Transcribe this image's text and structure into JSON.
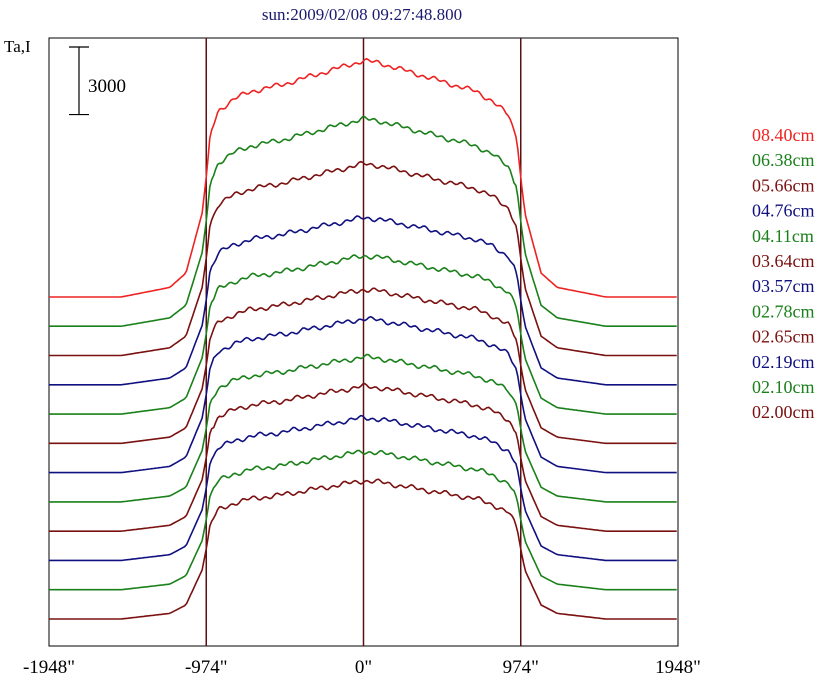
{
  "chart_data": {
    "type": "line",
    "title": "sun:2009/02/08 09:27:48.800",
    "ylabel": "Ta,I",
    "xlabel": "",
    "x_ticks": [
      "-1948\"",
      "-974\"",
      "0\"",
      "974\"",
      "1948\""
    ],
    "x_tick_values": [
      -1948,
      -974,
      0,
      974,
      1948
    ],
    "xlim": [
      -1948,
      1948
    ],
    "vertical_lines_at": [
      -974,
      0,
      974
    ],
    "scale_bar": {
      "label": "3000",
      "value": 3000
    },
    "grid": false,
    "legend_position": "right",
    "profile_shape": {
      "x": [
        -1948,
        -1500,
        -1200,
        -1100,
        -1000,
        -974,
        -950,
        -900,
        -800,
        -700,
        -500,
        -300,
        -100,
        0,
        100,
        300,
        500,
        700,
        800,
        900,
        950,
        974,
        1000,
        1100,
        1200,
        1500,
        1948
      ],
      "relative_level": [
        0,
        0.0,
        0.04,
        0.1,
        0.35,
        0.5,
        0.68,
        0.78,
        0.83,
        0.86,
        0.89,
        0.93,
        0.97,
        0.99,
        0.98,
        0.94,
        0.9,
        0.86,
        0.82,
        0.76,
        0.66,
        0.5,
        0.35,
        0.1,
        0.04,
        0.0,
        0
      ]
    },
    "series": [
      {
        "name": "08.40cm",
        "color": "#ee2222",
        "quiet_level": 0,
        "disk_peak": 10600
      },
      {
        "name": "06.38cm",
        "color": "#1a801a",
        "quiet_level": -1300,
        "disk_peak": 9300
      },
      {
        "name": "05.66cm",
        "color": "#7a1010",
        "quiet_level": -2600,
        "disk_peak": 8600
      },
      {
        "name": "04.76cm",
        "color": "#101080",
        "quiet_level": -3900,
        "disk_peak": 7500
      },
      {
        "name": "04.11cm",
        "color": "#1a801a",
        "quiet_level": -5200,
        "disk_peak": 7100
      },
      {
        "name": "03.64cm",
        "color": "#7a1010",
        "quiet_level": -6500,
        "disk_peak": 6900
      },
      {
        "name": "03.57cm",
        "color": "#101080",
        "quiet_level": -7800,
        "disk_peak": 6900
      },
      {
        "name": "02.78cm",
        "color": "#1a801a",
        "quiet_level": -9100,
        "disk_peak": 6500
      },
      {
        "name": "02.65cm",
        "color": "#7a1010",
        "quiet_level": -10400,
        "disk_peak": 6500
      },
      {
        "name": "02.19cm",
        "color": "#101080",
        "quiet_level": -11700,
        "disk_peak": 6400
      },
      {
        "name": "02.10cm",
        "color": "#1a801a",
        "quiet_level": -13000,
        "disk_peak": 6200
      },
      {
        "name": "02.00cm",
        "color": "#7a1010",
        "quiet_level": -14300,
        "disk_peak": 6200
      }
    ],
    "ylim": [
      -15500,
      11500
    ]
  }
}
